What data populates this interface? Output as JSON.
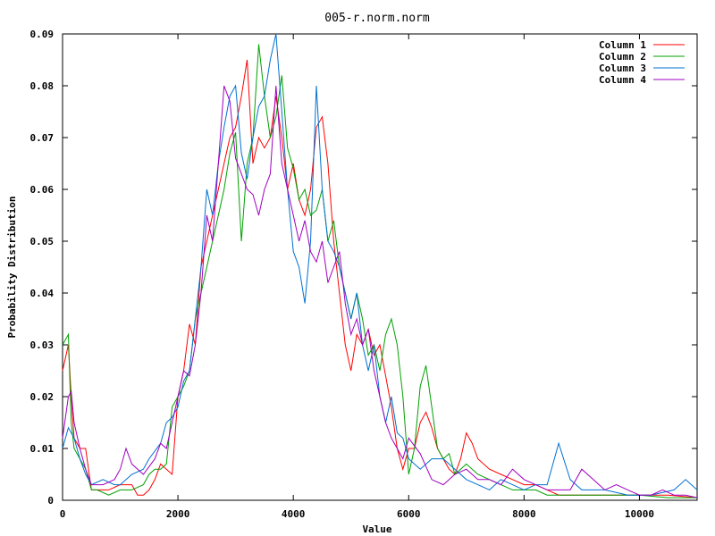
{
  "chart_data": {
    "type": "line",
    "title": "005-r.norm.norm",
    "xlabel": "Value",
    "ylabel": "Probability Distribution",
    "xlim": [
      0,
      11000
    ],
    "ylim": [
      0,
      0.09
    ],
    "xticks": [
      0,
      2000,
      4000,
      6000,
      8000,
      10000
    ],
    "yticks": [
      0,
      0.01,
      0.02,
      0.03,
      0.04,
      0.05,
      0.06,
      0.07,
      0.08,
      0.09
    ],
    "ytick_labels": [
      "0",
      "0.01",
      "0.02",
      "0.03",
      "0.04",
      "0.05",
      "0.06",
      "0.07",
      "0.08",
      "0.09"
    ],
    "grid": false,
    "legend_position": "top-right",
    "series": [
      {
        "name": "Column 1",
        "color": "#ff0000",
        "x": [
          0,
          100,
          150,
          200,
          300,
          400,
          500,
          600,
          800,
          1000,
          1200,
          1300,
          1400,
          1500,
          1600,
          1700,
          1800,
          1900,
          2000,
          2100,
          2200,
          2300,
          2400,
          2500,
          2600,
          2700,
          2800,
          2900,
          3000,
          3100,
          3200,
          3300,
          3400,
          3500,
          3600,
          3700,
          3800,
          3900,
          4000,
          4100,
          4200,
          4300,
          4400,
          4500,
          4600,
          4700,
          4800,
          4900,
          5000,
          5100,
          5200,
          5300,
          5400,
          5500,
          5600,
          5700,
          5800,
          5900,
          6000,
          6100,
          6200,
          6300,
          6400,
          6500,
          6600,
          6700,
          6800,
          6900,
          7000,
          7100,
          7200,
          7400,
          7600,
          7800,
          8000,
          8200,
          8400,
          8600,
          9000,
          9500,
          10000,
          10500,
          11000
        ],
        "y": [
          0.025,
          0.03,
          0.02,
          0.012,
          0.01,
          0.01,
          0.002,
          0.002,
          0.002,
          0.003,
          0.003,
          0.001,
          0.001,
          0.002,
          0.004,
          0.007,
          0.006,
          0.005,
          0.02,
          0.025,
          0.034,
          0.03,
          0.045,
          0.05,
          0.055,
          0.06,
          0.065,
          0.07,
          0.072,
          0.078,
          0.085,
          0.065,
          0.07,
          0.068,
          0.07,
          0.078,
          0.07,
          0.06,
          0.065,
          0.058,
          0.055,
          0.06,
          0.072,
          0.074,
          0.065,
          0.05,
          0.04,
          0.03,
          0.025,
          0.032,
          0.03,
          0.033,
          0.028,
          0.03,
          0.024,
          0.018,
          0.01,
          0.006,
          0.01,
          0.01,
          0.015,
          0.017,
          0.014,
          0.01,
          0.008,
          0.006,
          0.005,
          0.008,
          0.013,
          0.011,
          0.008,
          0.006,
          0.005,
          0.004,
          0.003,
          0.003,
          0.002,
          0.001,
          0.001,
          0.001,
          0.001,
          0.001,
          0.0005
        ]
      },
      {
        "name": "Column 2",
        "color": "#00a000",
        "x": [
          0,
          100,
          150,
          200,
          300,
          400,
          500,
          600,
          800,
          1000,
          1200,
          1400,
          1500,
          1600,
          1700,
          1800,
          1900,
          2000,
          2100,
          2200,
          2300,
          2400,
          2500,
          2600,
          2700,
          2800,
          2900,
          3000,
          3100,
          3200,
          3300,
          3400,
          3500,
          3600,
          3700,
          3800,
          3900,
          4000,
          4100,
          4200,
          4300,
          4400,
          4500,
          4600,
          4700,
          4800,
          4900,
          5000,
          5100,
          5200,
          5300,
          5400,
          5500,
          5600,
          5700,
          5800,
          5900,
          6000,
          6100,
          6200,
          6300,
          6400,
          6500,
          6600,
          6700,
          6800,
          6900,
          7000,
          7200,
          7400,
          7600,
          7800,
          8000,
          8200,
          8400,
          8600,
          9000,
          9500,
          10000,
          10500,
          11000
        ],
        "y": [
          0.03,
          0.032,
          0.015,
          0.01,
          0.008,
          0.006,
          0.002,
          0.002,
          0.001,
          0.002,
          0.002,
          0.003,
          0.005,
          0.006,
          0.006,
          0.007,
          0.018,
          0.02,
          0.022,
          0.025,
          0.035,
          0.04,
          0.045,
          0.05,
          0.055,
          0.06,
          0.067,
          0.071,
          0.05,
          0.065,
          0.07,
          0.088,
          0.078,
          0.07,
          0.074,
          0.082,
          0.068,
          0.064,
          0.058,
          0.06,
          0.055,
          0.056,
          0.06,
          0.05,
          0.054,
          0.045,
          0.04,
          0.035,
          0.04,
          0.035,
          0.028,
          0.03,
          0.025,
          0.032,
          0.035,
          0.03,
          0.02,
          0.005,
          0.01,
          0.022,
          0.026,
          0.018,
          0.01,
          0.008,
          0.009,
          0.005,
          0.006,
          0.007,
          0.005,
          0.004,
          0.003,
          0.002,
          0.002,
          0.002,
          0.001,
          0.001,
          0.001,
          0.001,
          0.001,
          0.0005,
          0.0005
        ]
      },
      {
        "name": "Column 3",
        "color": "#0070d0",
        "x": [
          0,
          100,
          200,
          300,
          400,
          500,
          700,
          900,
          1000,
          1200,
          1400,
          1500,
          1700,
          1800,
          1900,
          2000,
          2100,
          2200,
          2300,
          2400,
          2500,
          2600,
          2700,
          2800,
          2900,
          3000,
          3100,
          3200,
          3300,
          3400,
          3500,
          3600,
          3700,
          3800,
          3900,
          4000,
          4100,
          4200,
          4300,
          4400,
          4500,
          4600,
          4700,
          4800,
          4900,
          5000,
          5100,
          5200,
          5300,
          5400,
          5500,
          5600,
          5700,
          5800,
          5900,
          6000,
          6200,
          6400,
          6600,
          6800,
          7000,
          7200,
          7400,
          7600,
          7800,
          8000,
          8200,
          8400,
          8600,
          8800,
          9000,
          9400,
          9800,
          10200,
          10600,
          10800,
          11000
        ],
        "y": [
          0.01,
          0.014,
          0.012,
          0.008,
          0.005,
          0.003,
          0.004,
          0.003,
          0.003,
          0.005,
          0.006,
          0.008,
          0.011,
          0.015,
          0.016,
          0.018,
          0.023,
          0.025,
          0.035,
          0.045,
          0.06,
          0.055,
          0.065,
          0.072,
          0.078,
          0.08,
          0.067,
          0.062,
          0.07,
          0.076,
          0.078,
          0.085,
          0.09,
          0.075,
          0.06,
          0.048,
          0.045,
          0.038,
          0.05,
          0.08,
          0.06,
          0.05,
          0.048,
          0.045,
          0.04,
          0.035,
          0.04,
          0.03,
          0.025,
          0.03,
          0.02,
          0.015,
          0.02,
          0.013,
          0.012,
          0.008,
          0.006,
          0.008,
          0.008,
          0.006,
          0.004,
          0.003,
          0.002,
          0.004,
          0.003,
          0.002,
          0.003,
          0.003,
          0.011,
          0.004,
          0.002,
          0.002,
          0.001,
          0.001,
          0.002,
          0.004,
          0.002
        ]
      },
      {
        "name": "Column 4",
        "color": "#a000c0",
        "x": [
          0,
          100,
          150,
          200,
          300,
          400,
          500,
          700,
          900,
          1000,
          1100,
          1200,
          1400,
          1600,
          1700,
          1800,
          1900,
          2000,
          2100,
          2200,
          2300,
          2400,
          2500,
          2600,
          2700,
          2800,
          2900,
          3000,
          3100,
          3200,
          3300,
          3400,
          3500,
          3600,
          3700,
          3800,
          3900,
          4000,
          4100,
          4200,
          4300,
          4400,
          4500,
          4600,
          4700,
          4800,
          4900,
          5000,
          5100,
          5200,
          5300,
          5400,
          5500,
          5600,
          5700,
          5800,
          5900,
          6000,
          6200,
          6400,
          6600,
          6800,
          7000,
          7200,
          7400,
          7600,
          7800,
          8000,
          8200,
          8400,
          8600,
          8800,
          9000,
          9200,
          9400,
          9600,
          9800,
          10000,
          10200,
          10400,
          10600,
          10800,
          11000
        ],
        "y": [
          0.012,
          0.02,
          0.021,
          0.015,
          0.01,
          0.006,
          0.003,
          0.003,
          0.004,
          0.006,
          0.01,
          0.007,
          0.005,
          0.008,
          0.011,
          0.01,
          0.015,
          0.02,
          0.025,
          0.024,
          0.03,
          0.04,
          0.055,
          0.05,
          0.065,
          0.08,
          0.077,
          0.066,
          0.063,
          0.06,
          0.059,
          0.055,
          0.06,
          0.063,
          0.08,
          0.065,
          0.06,
          0.055,
          0.05,
          0.054,
          0.048,
          0.046,
          0.05,
          0.042,
          0.045,
          0.048,
          0.038,
          0.032,
          0.035,
          0.03,
          0.033,
          0.025,
          0.02,
          0.015,
          0.012,
          0.01,
          0.008,
          0.012,
          0.009,
          0.004,
          0.003,
          0.005,
          0.006,
          0.004,
          0.004,
          0.003,
          0.006,
          0.004,
          0.003,
          0.002,
          0.002,
          0.002,
          0.006,
          0.004,
          0.002,
          0.003,
          0.002,
          0.001,
          0.001,
          0.002,
          0.001,
          0.001,
          0.0005
        ]
      }
    ]
  }
}
